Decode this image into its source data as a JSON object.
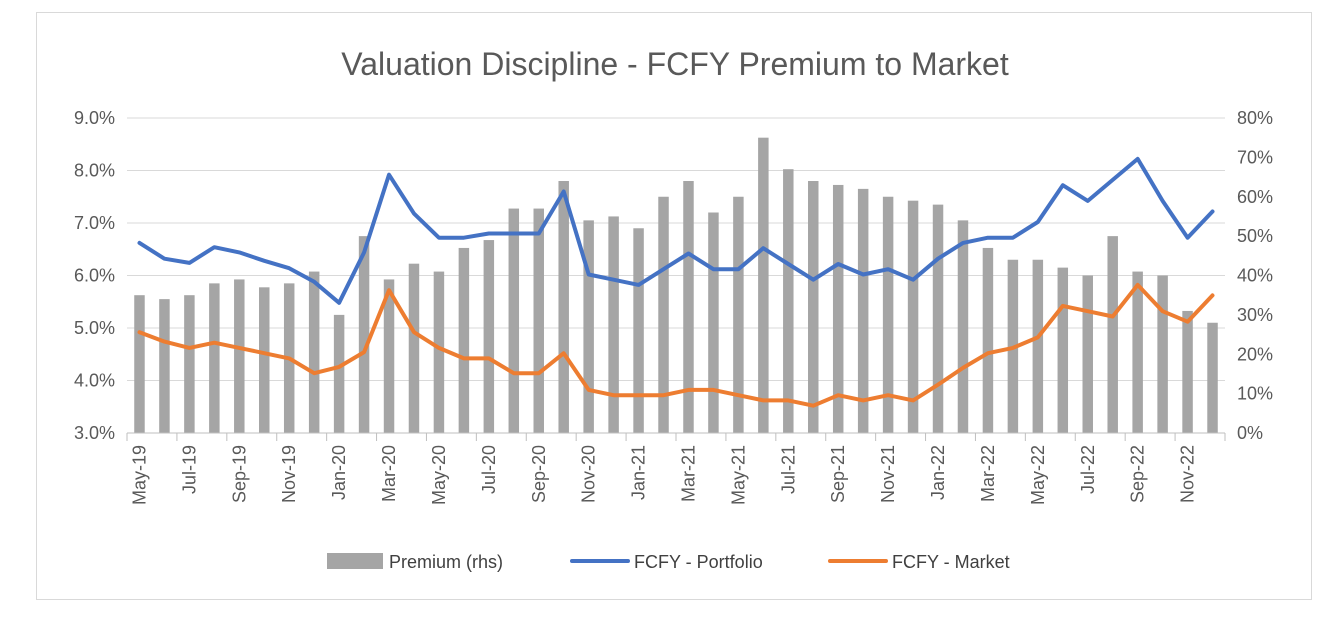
{
  "chart_data": {
    "type": "bar+line",
    "title": "Valuation Discipline - FCFY Premium to Market",
    "x": [
      "May-19",
      "Jun-19",
      "Jul-19",
      "Aug-19",
      "Sep-19",
      "Oct-19",
      "Nov-19",
      "Dec-19",
      "Jan-20",
      "Feb-20",
      "Mar-20",
      "Apr-20",
      "May-20",
      "Jun-20",
      "Jul-20",
      "Aug-20",
      "Sep-20",
      "Oct-20",
      "Nov-20",
      "Dec-20",
      "Jan-21",
      "Feb-21",
      "Mar-21",
      "Apr-21",
      "May-21",
      "Jun-21",
      "Jul-21",
      "Aug-21",
      "Sep-21",
      "Oct-21",
      "Nov-21",
      "Dec-21",
      "Jan-22",
      "Feb-22",
      "Mar-22",
      "Apr-22",
      "May-22",
      "Jun-22",
      "Jul-22",
      "Aug-22",
      "Sep-22",
      "Oct-22",
      "Nov-22",
      "Dec-22"
    ],
    "x_tick_labels": [
      "May-19",
      "Jul-19",
      "Sep-19",
      "Nov-19",
      "Jan-20",
      "Mar-20",
      "May-20",
      "Jul-20",
      "Sep-20",
      "Nov-20",
      "Jan-21",
      "Mar-21",
      "May-21",
      "Jul-21",
      "Sep-21",
      "Nov-21",
      "Jan-22",
      "Mar-22",
      "May-22",
      "Jul-22",
      "Sep-22",
      "Nov-22"
    ],
    "y_left": {
      "ylim": [
        3.0,
        9.0
      ],
      "ticks": [
        "3.0%",
        "4.0%",
        "5.0%",
        "6.0%",
        "7.0%",
        "8.0%",
        "9.0%"
      ]
    },
    "y_right": {
      "ylim": [
        0,
        80
      ],
      "ticks": [
        "0%",
        "10%",
        "20%",
        "30%",
        "40%",
        "50%",
        "60%",
        "70%",
        "80%"
      ]
    },
    "grid": "horizontal",
    "legend_position": "bottom",
    "series": [
      {
        "name": "Premium (rhs)",
        "type": "bar",
        "axis": "right",
        "color": "#a5a5a5",
        "values": [
          35,
          34,
          35,
          38,
          39,
          37,
          38,
          41,
          30,
          50,
          39,
          43,
          41,
          47,
          49,
          57,
          57,
          64,
          54,
          55,
          52,
          60,
          64,
          56,
          60,
          75,
          67,
          64,
          63,
          62,
          60,
          59,
          58,
          54,
          47,
          44,
          44,
          42,
          40,
          50,
          41,
          40,
          31,
          28
        ]
      },
      {
        "name": "FCFY - Portfolio",
        "type": "line",
        "axis": "left",
        "color": "#4472c4",
        "values": [
          6.62,
          6.32,
          6.24,
          6.54,
          6.44,
          6.28,
          6.14,
          5.88,
          5.48,
          6.44,
          7.92,
          7.18,
          6.72,
          6.72,
          6.8,
          6.8,
          6.8,
          7.6,
          6.02,
          5.92,
          5.82,
          6.12,
          6.42,
          6.12,
          6.12,
          6.52,
          6.22,
          5.92,
          6.22,
          6.02,
          6.12,
          5.92,
          6.32,
          6.62,
          6.72,
          6.72,
          7.02,
          7.72,
          7.42,
          7.82,
          8.22,
          7.42,
          6.72,
          7.22
        ]
      },
      {
        "name": "FCFY - Market",
        "type": "line",
        "axis": "left",
        "color": "#ed7d31",
        "values": [
          4.92,
          4.74,
          4.62,
          4.72,
          4.62,
          4.52,
          4.42,
          4.14,
          4.26,
          4.54,
          5.72,
          4.92,
          4.62,
          4.42,
          4.42,
          4.14,
          4.14,
          4.52,
          3.82,
          3.72,
          3.72,
          3.72,
          3.82,
          3.82,
          3.72,
          3.62,
          3.62,
          3.52,
          3.72,
          3.62,
          3.72,
          3.62,
          3.92,
          4.24,
          4.52,
          4.62,
          4.82,
          5.42,
          5.32,
          5.22,
          5.82,
          5.32,
          5.12,
          5.62
        ]
      }
    ]
  }
}
